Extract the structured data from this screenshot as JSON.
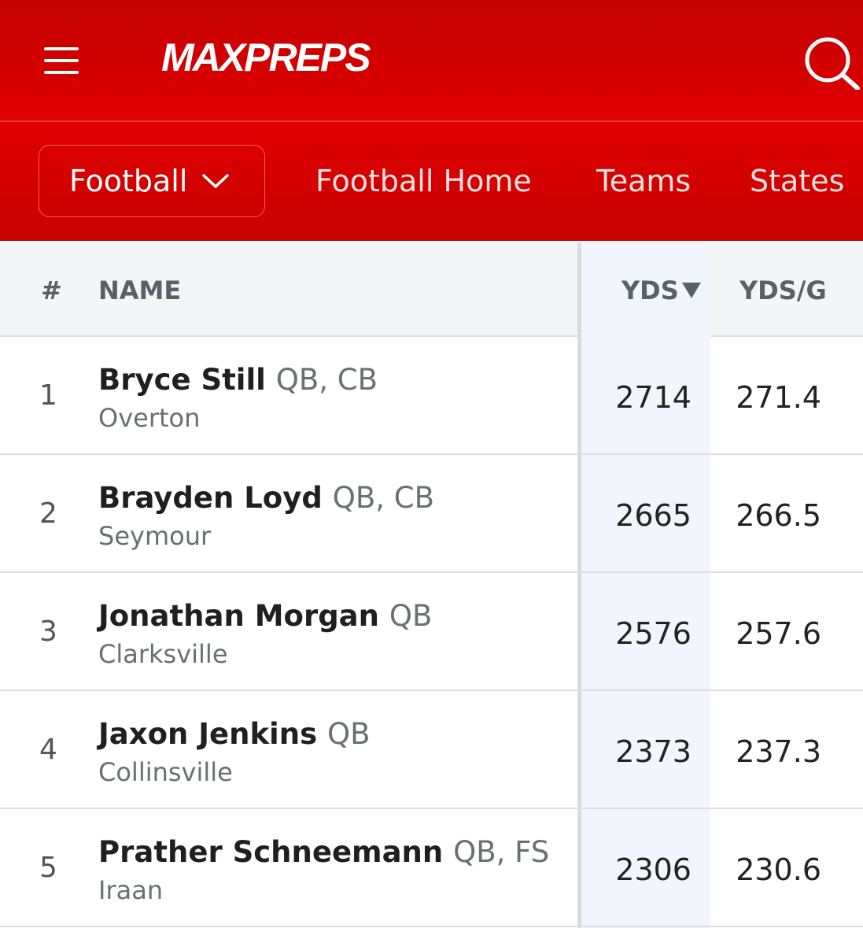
{
  "header": {
    "logo": "MAXPREPS"
  },
  "nav": {
    "sport": "Football",
    "links": [
      "Football Home",
      "Teams",
      "States"
    ]
  },
  "table": {
    "columns": [
      "#",
      "NAME",
      "YDS",
      "YDS/G"
    ],
    "rows": [
      {
        "rank": 1,
        "name": "Bryce Still",
        "position": "QB, CB",
        "school": "Overton",
        "yds": 2714,
        "ydsg": 271.4
      },
      {
        "rank": 2,
        "name": "Brayden Loyd",
        "position": "QB, CB",
        "school": "Seymour",
        "yds": 2665,
        "ydsg": 266.5
      },
      {
        "rank": 3,
        "name": "Jonathan Morgan",
        "position": "QB",
        "school": "Clarksville",
        "yds": 2576,
        "ydsg": 257.6
      },
      {
        "rank": 4,
        "name": "Jaxon Jenkins",
        "position": "QB",
        "school": "Collinsville",
        "yds": 2373,
        "ydsg": 237.3
      },
      {
        "rank": 5,
        "name": "Prather Schneemann",
        "position": "QB, FS",
        "school": "Iraan",
        "yds": 2306,
        "ydsg": 230.6
      }
    ]
  }
}
